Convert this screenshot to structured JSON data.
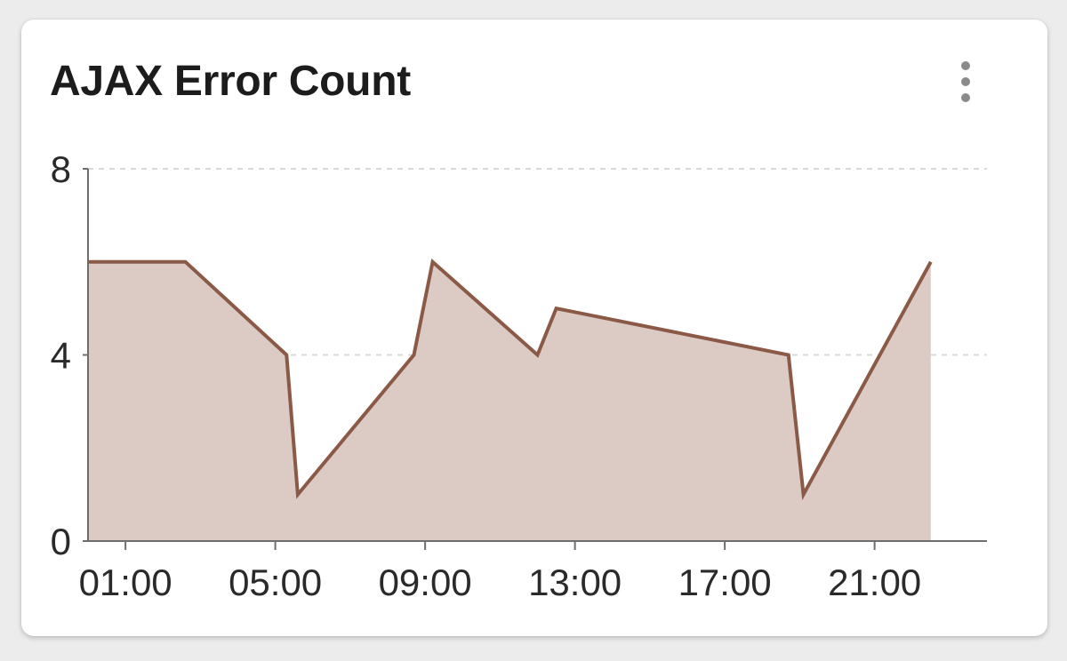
{
  "card": {
    "title": "AJAX Error Count",
    "menu_icon": "more-vert-icon"
  },
  "colors": {
    "line": "#8b5a47",
    "area": "#dccbc5",
    "grid": "#d9d9d9",
    "axis": "#6e6e6e"
  },
  "chart_data": {
    "type": "area",
    "title": "AJAX Error Count",
    "xlabel": "",
    "ylabel": "",
    "x_unit": "hours",
    "xlim": [
      0,
      24
    ],
    "ylim": [
      0,
      8
    ],
    "grid": true,
    "legend": "none",
    "x_ticks": [
      {
        "value": 1,
        "label": "01:00"
      },
      {
        "value": 5,
        "label": "05:00"
      },
      {
        "value": 9,
        "label": "09:00"
      },
      {
        "value": 13,
        "label": "13:00"
      },
      {
        "value": 17,
        "label": "17:00"
      },
      {
        "value": 21,
        "label": "21:00"
      }
    ],
    "y_ticks": [
      {
        "value": 0,
        "label": "0"
      },
      {
        "value": 4,
        "label": "4"
      },
      {
        "value": 8,
        "label": "8"
      }
    ],
    "series": [
      {
        "name": "AJAX Error Count",
        "x": [
          0.0,
          2.6,
          5.3,
          5.6,
          8.7,
          9.2,
          12.0,
          12.5,
          18.7,
          19.1,
          22.5
        ],
        "y": [
          6,
          6,
          4,
          1,
          4,
          6,
          4,
          5,
          4,
          1,
          6
        ]
      }
    ]
  }
}
